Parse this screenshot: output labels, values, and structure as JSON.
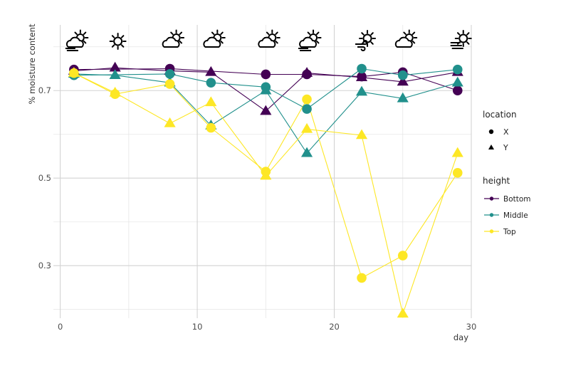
{
  "chart_data": {
    "type": "line",
    "title": "",
    "xlabel": "day",
    "ylabel": "% moisture content",
    "xlim": [
      -0.5,
      30
    ],
    "ylim": [
      0.18,
      0.85
    ],
    "x_ticks": [
      0,
      10,
      20,
      30
    ],
    "y_ticks": [
      0.3,
      0.5,
      0.7
    ],
    "y_tick_labels": [
      "0.3",
      "0.5",
      "0.7"
    ],
    "grid": true,
    "weather_icons": [
      {
        "day": 1,
        "icon": "partly-cloudy-fog-icon"
      },
      {
        "day": 4,
        "icon": "sun-icon"
      },
      {
        "day": 8,
        "icon": "partly-cloudy-icon"
      },
      {
        "day": 11,
        "icon": "partly-cloudy-icon"
      },
      {
        "day": 15,
        "icon": "partly-cloudy-icon"
      },
      {
        "day": 18,
        "icon": "partly-cloudy-fog-icon"
      },
      {
        "day": 22,
        "icon": "sun-wind-icon"
      },
      {
        "day": 25,
        "icon": "partly-cloudy-icon"
      },
      {
        "day": 29,
        "icon": "sun-fog-icon"
      }
    ],
    "legend_location": {
      "title": "location",
      "items": [
        {
          "label": "X",
          "shape": "circle"
        },
        {
          "label": "Y",
          "shape": "triangle"
        }
      ]
    },
    "legend_height": {
      "title": "height",
      "items": [
        {
          "label": "Bottom",
          "color": "#440154"
        },
        {
          "label": "Middle",
          "color": "#21908C"
        },
        {
          "label": "Top",
          "color": "#FDE725"
        }
      ]
    },
    "series": [
      {
        "name": "Bottom",
        "location": "X",
        "color": "#440154",
        "x": [
          1,
          8,
          15,
          18,
          22,
          25,
          29
        ],
        "y": [
          0.748,
          0.75,
          0.737,
          0.737,
          0.732,
          0.742,
          0.7
        ]
      },
      {
        "name": "Bottom",
        "location": "Y",
        "color": "#440154",
        "x": [
          1,
          4,
          8,
          11,
          15,
          18,
          22,
          25,
          29
        ],
        "y": [
          0.745,
          0.752,
          0.745,
          0.742,
          0.653,
          0.74,
          0.73,
          0.72,
          0.742
        ]
      },
      {
        "name": "Middle",
        "location": "X",
        "color": "#21908C",
        "x": [
          1,
          8,
          11,
          15,
          18,
          22,
          25,
          29
        ],
        "y": [
          0.735,
          0.738,
          0.718,
          0.708,
          0.658,
          0.75,
          0.735,
          0.748
        ]
      },
      {
        "name": "Middle",
        "location": "Y",
        "color": "#21908C",
        "x": [
          1,
          4,
          8,
          11,
          15,
          18,
          22,
          25,
          29
        ],
        "y": [
          0.738,
          0.735,
          0.718,
          0.62,
          0.7,
          0.557,
          0.697,
          0.682,
          0.718
        ]
      },
      {
        "name": "Top",
        "location": "X",
        "color": "#FDE725",
        "x": [
          1,
          4,
          8,
          11,
          15,
          18,
          22,
          25,
          29
        ],
        "y": [
          0.74,
          0.692,
          0.715,
          0.615,
          0.515,
          0.68,
          0.272,
          0.323,
          0.512
        ]
      },
      {
        "name": "Top",
        "location": "Y",
        "color": "#FDE725",
        "x": [
          1,
          4,
          8,
          11,
          15,
          18,
          22,
          25,
          29
        ],
        "y": [
          0.74,
          0.695,
          0.625,
          0.673,
          0.505,
          0.612,
          0.598,
          0.19,
          0.557
        ]
      }
    ]
  }
}
